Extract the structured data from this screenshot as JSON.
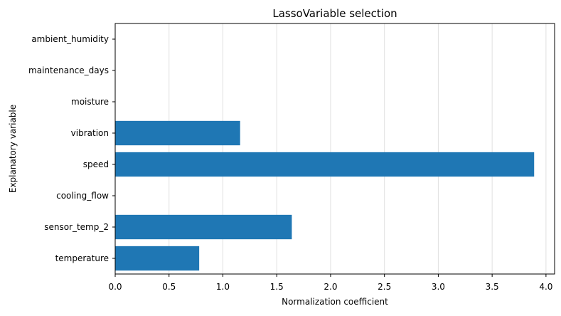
{
  "chart_data": {
    "type": "bar",
    "orientation": "horizontal",
    "title": "LassoVariable selection",
    "xlabel": "Normalization coefficient",
    "ylabel": "Explanatory variable",
    "categories": [
      "temperature",
      "sensor_temp_2",
      "cooling_flow",
      "speed",
      "vibration",
      "moisture",
      "maintenance_days",
      "ambient_humidity"
    ],
    "values": [
      0.78,
      1.64,
      0.0,
      3.89,
      1.16,
      0.0,
      0.0,
      0.0
    ],
    "xlim": [
      0,
      4.08
    ],
    "xticks": [
      "0.0",
      "0.5",
      "1.0",
      "1.5",
      "2.0",
      "2.5",
      "3.0",
      "3.5",
      "4.0"
    ],
    "grid": "vertical",
    "colors": {
      "bar": "#1f77b4",
      "grid": "#e0e0e0",
      "axis": "#000000"
    }
  }
}
